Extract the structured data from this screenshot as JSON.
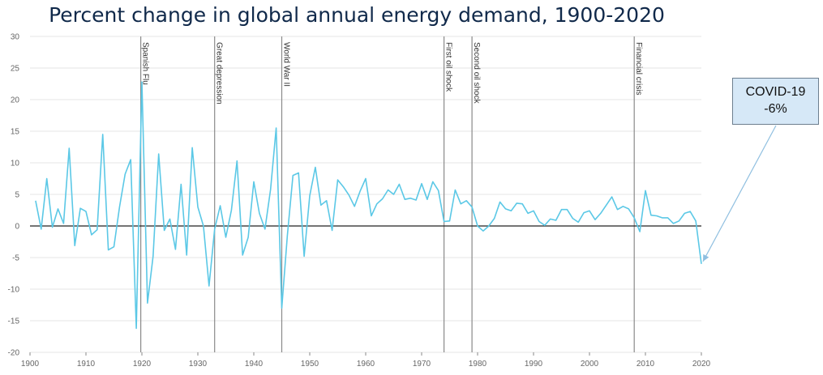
{
  "chart_data": {
    "type": "line",
    "title": "Percent change in global annual energy demand, 1900-2020",
    "xlabel": "",
    "ylabel": "",
    "xlim": [
      1900,
      2020
    ],
    "ylim": [
      -20,
      30
    ],
    "x_ticks": [
      1900,
      1910,
      1920,
      1930,
      1940,
      1950,
      1960,
      1970,
      1980,
      1990,
      2000,
      2010,
      2020
    ],
    "y_ticks": [
      30,
      25,
      20,
      15,
      10,
      5,
      0,
      -5,
      -10,
      -15,
      -20
    ],
    "line_color": "#5bc8e6",
    "series": [
      {
        "x": [
          1901,
          1902,
          1903,
          1904,
          1905,
          1906,
          1907,
          1908,
          1909,
          1910,
          1911,
          1912,
          1913,
          1914,
          1915,
          1916,
          1917,
          1918,
          1919,
          1920,
          1921,
          1922,
          1923,
          1924,
          1925,
          1926,
          1927,
          1928,
          1929,
          1930,
          1931,
          1932,
          1933,
          1934,
          1935,
          1936,
          1937,
          1938,
          1939,
          1940,
          1941,
          1942,
          1943,
          1944,
          1945,
          1946,
          1947,
          1948,
          1949,
          1950,
          1951,
          1952,
          1953,
          1954,
          1955,
          1956,
          1957,
          1958,
          1959,
          1960,
          1961,
          1962,
          1963,
          1964,
          1965,
          1966,
          1967,
          1968,
          1969,
          1970,
          1971,
          1972,
          1973,
          1974,
          1975,
          1976,
          1977,
          1978,
          1979,
          1980,
          1981,
          1982,
          1983,
          1984,
          1985,
          1986,
          1987,
          1988,
          1989,
          1990,
          1991,
          1992,
          1993,
          1994,
          1995,
          1996,
          1997,
          1998,
          1999,
          2000,
          2001,
          2002,
          2003,
          2004,
          2005,
          2006,
          2007,
          2008,
          2009,
          2010,
          2011,
          2012,
          2013,
          2014,
          2015,
          2016,
          2017,
          2018,
          2019,
          2020
        ],
        "values": [
          4.0,
          -0.5,
          7.5,
          -0.2,
          2.7,
          0.4,
          12.3,
          -3.1,
          2.8,
          2.3,
          -1.4,
          -0.6,
          14.5,
          -3.8,
          -3.3,
          3.0,
          8.2,
          10.5,
          -16.2,
          22.8,
          -12.2,
          -4.8,
          11.4,
          -0.7,
          1.1,
          -3.7,
          6.6,
          -4.6,
          12.4,
          3.0,
          0.0,
          -9.5,
          -0.5,
          3.2,
          -1.8,
          2.5,
          10.3,
          -4.6,
          -1.8,
          7.0,
          2.0,
          -0.5,
          5.8,
          15.5,
          -13.0,
          -1.5,
          8.0,
          8.4,
          -4.8,
          4.8,
          9.3,
          3.3,
          4.0,
          -0.7,
          7.3,
          6.2,
          4.9,
          3.1,
          5.5,
          7.5,
          1.6,
          3.5,
          4.3,
          5.7,
          5.0,
          6.6,
          4.2,
          4.4,
          4.1,
          6.7,
          4.2,
          7.0,
          5.6,
          0.7,
          0.8,
          5.7,
          3.5,
          4.0,
          3.0,
          0.0,
          -0.8,
          0.0,
          1.2,
          3.8,
          2.7,
          2.4,
          3.6,
          3.5,
          2.0,
          2.4,
          0.7,
          0.1,
          1.1,
          0.9,
          2.6,
          2.6,
          1.2,
          0.6,
          2.1,
          2.4,
          1.0,
          2.0,
          3.3,
          4.6,
          2.6,
          3.1,
          2.7,
          1.3,
          -0.9,
          5.6,
          1.7,
          1.6,
          1.3,
          1.3,
          0.4,
          0.8,
          2.0,
          2.3,
          0.8,
          -6.0
        ]
      }
    ],
    "events": [
      {
        "year": 1919.8,
        "label": "Spanish Flu"
      },
      {
        "year": 1933,
        "label": "Great depression"
      },
      {
        "year": 1945,
        "label": "World War II"
      },
      {
        "year": 1974,
        "label": "First oil shock"
      },
      {
        "year": 1979,
        "label": "Second oil shock"
      },
      {
        "year": 2008,
        "label": "Financial crisis"
      }
    ],
    "annotation": {
      "line1": "COVID-19",
      "line2": "-6%",
      "x": 2020,
      "y": -6.0
    }
  }
}
